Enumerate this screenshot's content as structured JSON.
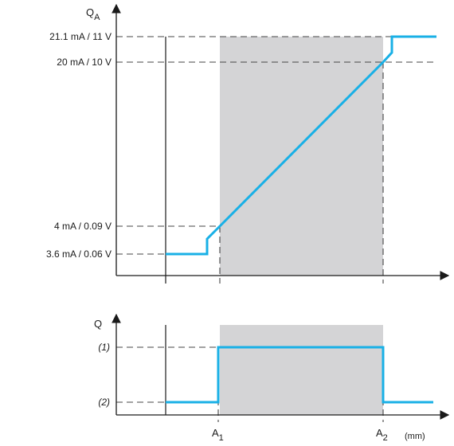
{
  "upper": {
    "y_axis_label": "Q",
    "y_axis_subscript": "A",
    "levels": [
      "21.1 mA / 11 V",
      "20 mA / 10 V",
      "4 mA / 0.09 V",
      "3.6 mA / 0.06 V"
    ]
  },
  "lower": {
    "y_axis_label": "Q",
    "levels": [
      "(1)",
      "(2)"
    ]
  },
  "x_axis": {
    "a1_label": "A",
    "a1_subscript": "1",
    "a2_label": "A",
    "a2_subscript": "2",
    "unit": "(mm)"
  },
  "colors": {
    "curve": "#19b0e6",
    "shade": "#d4d4d6",
    "axis": "#1a1a1a"
  }
}
